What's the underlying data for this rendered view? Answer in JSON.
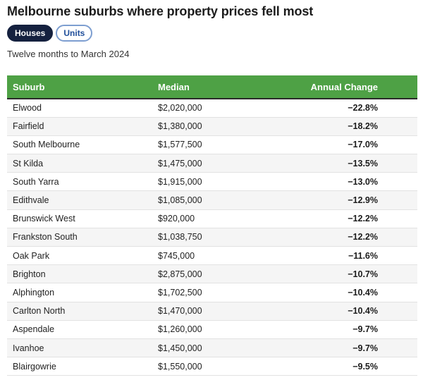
{
  "title": "Melbourne suburbs where property prices fell most",
  "tabs": [
    {
      "label": "Houses",
      "active": true
    },
    {
      "label": "Units",
      "active": false
    }
  ],
  "subtitle": "Twelve months to March 2024",
  "colors": {
    "header_bg": "#4ea145",
    "active_tab": "#15213f",
    "inactive_tab_text": "#1f4e9a"
  },
  "chart_data": {
    "type": "table",
    "columns": [
      "Suburb",
      "Median",
      "Annual Change"
    ],
    "rows": [
      [
        "Elwood",
        "$2,020,000",
        "−22.8%"
      ],
      [
        "Fairfield",
        "$1,380,000",
        "−18.2%"
      ],
      [
        "South Melbourne",
        "$1,577,500",
        "−17.0%"
      ],
      [
        "St Kilda",
        "$1,475,000",
        "−13.5%"
      ],
      [
        "South Yarra",
        "$1,915,000",
        "−13.0%"
      ],
      [
        "Edithvale",
        "$1,085,000",
        "−12.9%"
      ],
      [
        "Brunswick West",
        "$920,000",
        "−12.2%"
      ],
      [
        "Frankston South",
        "$1,038,750",
        "−12.2%"
      ],
      [
        "Oak Park",
        "$745,000",
        "−11.6%"
      ],
      [
        "Brighton",
        "$2,875,000",
        "−10.7%"
      ],
      [
        "Alphington",
        "$1,702,500",
        "−10.4%"
      ],
      [
        "Carlton North",
        "$1,470,000",
        "−10.4%"
      ],
      [
        "Aspendale",
        "$1,260,000",
        "−9.7%"
      ],
      [
        "Ivanhoe",
        "$1,450,000",
        "−9.7%"
      ],
      [
        "Blairgowrie",
        "$1,550,000",
        "−9.5%"
      ]
    ]
  }
}
